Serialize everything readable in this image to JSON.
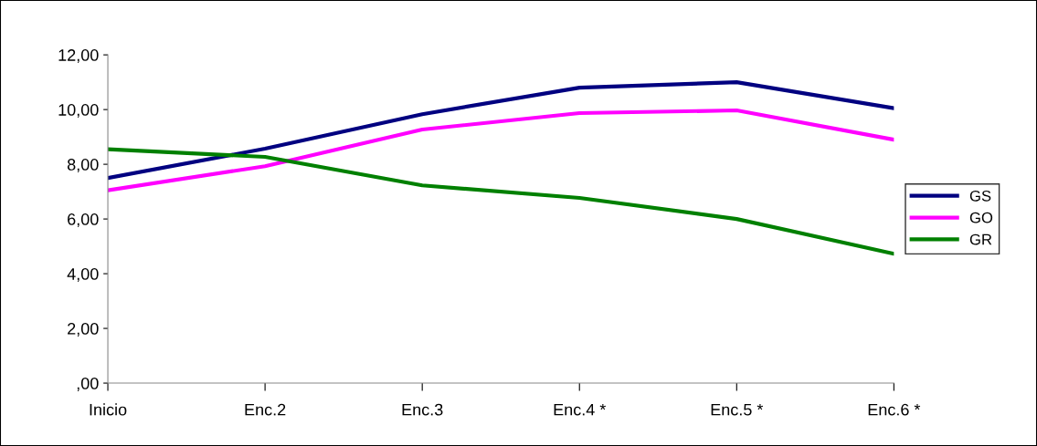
{
  "chart_data": {
    "type": "line",
    "categories": [
      "Inicio",
      "Enc.2",
      "Enc.3",
      "Enc.4 *",
      "Enc.5 *",
      "Enc.6 *"
    ],
    "series": [
      {
        "name": "GS",
        "color": "#000080",
        "values": [
          7.5,
          8.57,
          9.83,
          10.8,
          11.0,
          10.05
        ]
      },
      {
        "name": "GO",
        "color": "#ff00ff",
        "values": [
          7.05,
          7.93,
          9.27,
          9.87,
          9.97,
          8.9
        ]
      },
      {
        "name": "GR",
        "color": "#008000",
        "values": [
          8.55,
          8.27,
          7.23,
          6.77,
          6.0,
          4.73
        ]
      }
    ],
    "ylim": [
      0,
      12
    ],
    "yticks": [
      {
        "value": 0,
        "label": ",00"
      },
      {
        "value": 2,
        "label": "2,00"
      },
      {
        "value": 4,
        "label": "4,00"
      },
      {
        "value": 6,
        "label": "6,00"
      },
      {
        "value": 8,
        "label": "8,00"
      },
      {
        "value": 10,
        "label": "10,00"
      },
      {
        "value": 12,
        "label": "12,00"
      }
    ],
    "grid": false,
    "legend": "right",
    "marker": "none",
    "line_style": "solid"
  }
}
